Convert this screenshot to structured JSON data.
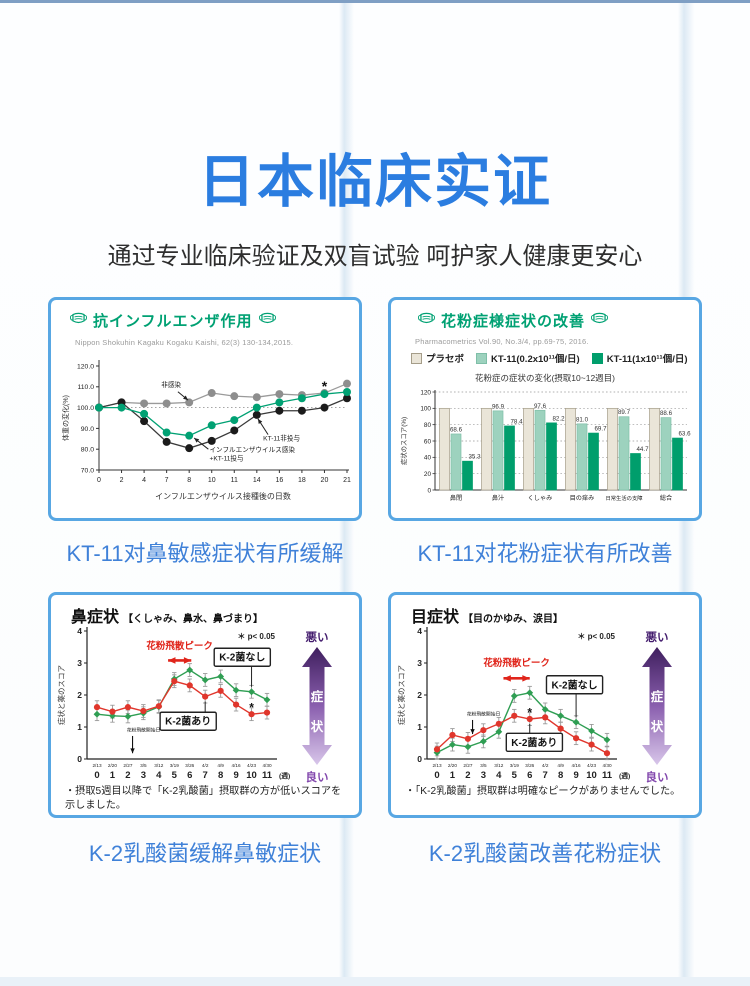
{
  "page": {
    "title": "日本临床实证",
    "subtitle": "通过专业临床验证及双盲试验 呵护家人健康更安心",
    "accent_blue": "#2b7de0",
    "caption_blue": "#3f81d8",
    "panel_border_blue": "#58a7e3",
    "brand_green": "#00a173"
  },
  "captions": [
    "KT-11对鼻敏感症状有所缓解",
    "KT-11对花粉症状有所改善",
    "K-2乳酸菌缓解鼻敏症状",
    "K-2乳酸菌改善花粉症状"
  ],
  "chart_data": [
    {
      "id": "influenza",
      "type": "line",
      "title": "抗インフルエンザ作用",
      "citation": "Nippon Shokuhin Kagaku Kogaku Kaishi, 62(3) 130-134,2015.",
      "xlabel": "インフルエンザウイルス接種後の日数",
      "ylabel": "体重の変化(%)",
      "ylim": [
        70,
        120
      ],
      "yticks": [
        70,
        80,
        90,
        100,
        110,
        120
      ],
      "baseline": 100,
      "x_categories": [
        "0",
        "2",
        "4",
        "7",
        "8",
        "10",
        "11",
        "14",
        "16",
        "18",
        "20",
        "21"
      ],
      "series": [
        {
          "name": "非感染",
          "color": "#8e8e8e",
          "line": "#9a9a9a",
          "values": [
            100,
            102.5,
            102,
            102,
            102.5,
            107,
            105.5,
            105,
            106.5,
            106,
            107,
            111.5
          ]
        },
        {
          "name": "KT-11非投与",
          "color": "#1b1b1b",
          "line": "#3a3a3a",
          "values": [
            100,
            102.5,
            93.5,
            83.5,
            80.5,
            84,
            89,
            96.5,
            98.5,
            98.5,
            100,
            104.5
          ]
        },
        {
          "name": "インフルエンザウイルス感染+KT-11投与",
          "color": "#00a173",
          "line": "#00a173",
          "values": [
            100,
            100,
            97,
            88,
            86.5,
            91.5,
            94,
            100,
            102.5,
            104.5,
            106.5,
            107.5
          ]
        }
      ],
      "annotations": [
        {
          "lines": [
            "非感染"
          ],
          "anchor": "middle",
          "tx": 3.2,
          "ty": 109.8,
          "ax1": 3.5,
          "ay1": 107.6,
          "ax2": 3.95,
          "ay2": 103.6
        },
        {
          "lines": [
            "KT-11非投与"
          ],
          "anchor": "middle",
          "tx": 8.1,
          "ty": 84.3,
          "ax1": 7.5,
          "ay1": 87.0,
          "ax2": 7.05,
          "ay2": 94.6
        },
        {
          "lines": [
            "インフルエンザウイルス感染",
            "+KT-11投与"
          ],
          "anchor": "start",
          "tx": 4.9,
          "ty": 78.6,
          "ax1": 4.85,
          "ay1": 80.0,
          "ax2": 4.22,
          "ay2": 85.4
        }
      ],
      "asterisk": {
        "x": 10,
        "y": 110.8
      }
    },
    {
      "id": "pollen",
      "type": "bar",
      "title": "花粉症様症状の改善",
      "citation": "Pharmacometrics Vol.90, No.3/4, pp.69-75, 2016.",
      "chart_title": "花粉症の症状の変化(摂取10~12週目)",
      "ylabel": "症状のスコア(%)",
      "ylim": [
        0,
        120
      ],
      "yticks": [
        0,
        20,
        40,
        60,
        80,
        100,
        120
      ],
      "categories": [
        "鼻閉",
        "鼻汁",
        "くしゃみ",
        "目の痒み",
        "日常生活の支障",
        "総合"
      ],
      "series": [
        {
          "name": "プラセボ",
          "color": "#eae5d8",
          "border": "#a59d89",
          "show_labels": false,
          "values": [
            100,
            100,
            100,
            100,
            100,
            100
          ]
        },
        {
          "name": "KT-11(0.2x10¹¹個/日)",
          "color": "#9dd2be",
          "border": "#7fbfa8",
          "show_labels": true,
          "values": [
            68.6,
            96.9,
            97.6,
            81.0,
            89.7,
            88.6
          ]
        },
        {
          "name": "KT-11(1x10¹¹個/日)",
          "color": "#009e6c",
          "border": "#009e6c",
          "show_labels": true,
          "values": [
            35.3,
            78.4,
            82.2,
            69.7,
            44.7,
            63.6
          ]
        }
      ]
    },
    {
      "id": "nasal",
      "type": "line_k2",
      "title": "鼻症状",
      "title_sub": "【くしゃみ、鼻水、鼻づまり】",
      "ylabel": "症状と薬のスコア",
      "ylim": [
        0,
        4
      ],
      "yticks": [
        0,
        1,
        2,
        3,
        4
      ],
      "dates": [
        "2/13",
        "2/20",
        "2/27",
        "3/5",
        "3/12",
        "3/19",
        "3/26",
        "4/2",
        "4/9",
        "4/16",
        "4/23",
        "4/30"
      ],
      "weeks": [
        "0",
        "1",
        "2",
        "3",
        "4",
        "5",
        "6",
        "7",
        "8",
        "9",
        "10",
        "11"
      ],
      "week_unit": "(週)",
      "pvalue": "＊ p< 0.05",
      "error": 0.2,
      "series": [
        {
          "name": "K-2菌なし",
          "color": "#2f9e53",
          "marker": "diamond",
          "values": [
            1.4,
            1.35,
            1.33,
            1.43,
            1.63,
            2.5,
            2.78,
            2.47,
            2.58,
            2.15,
            2.1,
            1.85
          ]
        },
        {
          "name": "K-2菌あり",
          "color": "#e0362c",
          "marker": "circle",
          "values": [
            1.62,
            1.48,
            1.62,
            1.5,
            1.65,
            2.43,
            2.3,
            1.95,
            2.13,
            1.7,
            1.4,
            1.45
          ]
        }
      ],
      "peak_arrow": {
        "label": "花粉飛散ピーク",
        "x1": 4.6,
        "x2": 6.1,
        "y": 3.08,
        "label_y": 3.44
      },
      "start_arrow": {
        "label": "花粉飛散開始日",
        "x": 2.3,
        "y_from": 0.72,
        "y_to": 0.18,
        "label_y": 0.86
      },
      "box_labels": [
        {
          "text": "K-2菌なし",
          "x": 9.4,
          "y": 3.18,
          "leader_series": 0,
          "leader_index": 10
        },
        {
          "text": "K-2菌あり",
          "x": 5.9,
          "y": 1.18,
          "leader_series": 1,
          "leader_index": 7
        }
      ],
      "asterisk": {
        "x": 10,
        "y": 1.66
      },
      "side": {
        "bad": "悪い",
        "good": "良い",
        "word": [
          "症",
          "状"
        ]
      },
      "note": "・摂取5週目以降で「K-2乳酸菌」摂取群の方が低いスコアを示しました。"
    },
    {
      "id": "eye",
      "type": "line_k2",
      "title": "目症状",
      "title_sub": "【目のかゆみ、涙目】",
      "ylabel": "症状と薬のスコア",
      "ylim": [
        0,
        4
      ],
      "yticks": [
        0,
        1,
        2,
        3,
        4
      ],
      "dates": [
        "2/13",
        "2/20",
        "2/27",
        "3/5",
        "3/12",
        "3/19",
        "3/26",
        "4/2",
        "4/9",
        "4/16",
        "4/23",
        "4/30"
      ],
      "weeks": [
        "0",
        "1",
        "2",
        "3",
        "4",
        "5",
        "6",
        "7",
        "8",
        "9",
        "10",
        "11"
      ],
      "week_unit": "(週)",
      "pvalue": "＊ p< 0.05",
      "error": 0.2,
      "series": [
        {
          "name": "K-2菌なし",
          "color": "#2f9e53",
          "marker": "diamond",
          "values": [
            0.2,
            0.45,
            0.38,
            0.55,
            0.85,
            1.97,
            2.07,
            1.55,
            1.35,
            1.15,
            0.88,
            0.6
          ]
        },
        {
          "name": "K-2菌あり",
          "color": "#e0362c",
          "marker": "circle",
          "values": [
            0.3,
            0.75,
            0.63,
            0.9,
            1.1,
            1.35,
            1.25,
            1.3,
            0.95,
            0.65,
            0.45,
            0.18
          ]
        }
      ],
      "peak_arrow": {
        "label": "花粉飛散ピーク",
        "x1": 4.3,
        "x2": 6.0,
        "y": 2.52,
        "label_y": 2.9
      },
      "start_arrow": {
        "label": "花粉飛散開始日",
        "x": 2.3,
        "y_from": 1.22,
        "y_to": 0.78,
        "label_y": 1.36
      },
      "box_labels": [
        {
          "text": "K-2菌なし",
          "x": 8.9,
          "y": 2.32,
          "leader_series": 0,
          "leader_index": 9
        },
        {
          "text": "K-2菌あり",
          "x": 6.3,
          "y": 0.52,
          "leader_series": 1,
          "leader_index": 6
        }
      ],
      "asterisk": {
        "x": 6,
        "y": 1.5
      },
      "side": {
        "bad": "悪い",
        "good": "良い",
        "word": [
          "症",
          "状"
        ]
      },
      "note": "・「K-2乳酸菌」摂取群は明確なピークがありませんでした。"
    }
  ]
}
